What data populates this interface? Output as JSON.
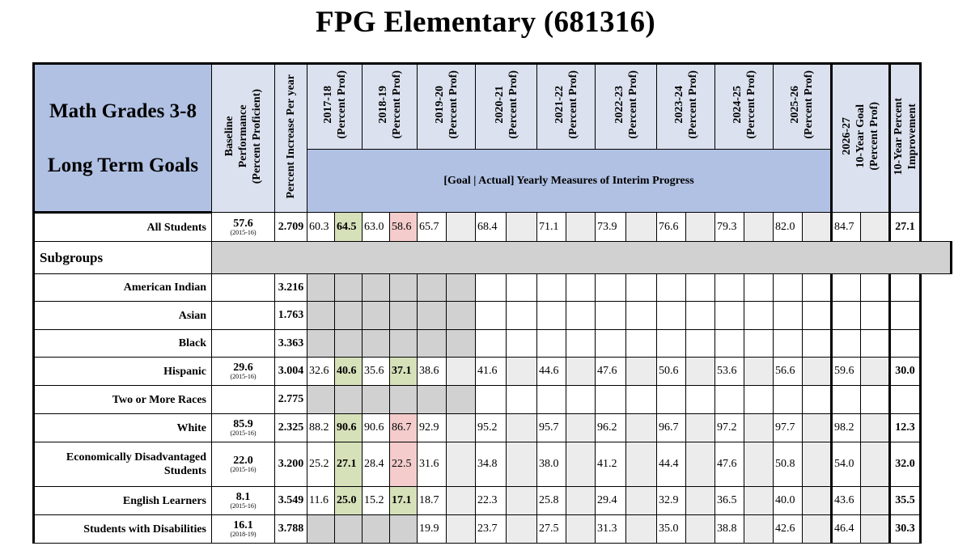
{
  "title": "FPG Elementary (681316)",
  "header": {
    "subject": "Math Grades 3-8",
    "long_term_goals": "Long Term Goals",
    "baseline": "Baseline\nPerformance\n(Percent Proficient)",
    "increase": "Percent Increase Per year",
    "years": [
      "2017-18\n(Percent Prof)",
      "2018-19\n(Percent Prof)",
      "2019-20\n(Percent Prof)",
      "2020-21\n(Percent Prof)",
      "2021-22\n(Percent Prof)",
      "2022-23\n(Percent Prof)",
      "2023-24\n(Percent Prof)",
      "2024-25\n(Percent Prof)",
      "2025-26\n(Percent Prof)"
    ],
    "ten_year_goal": "2026-27\n10-Year Goal\n(Percent Prof)",
    "improvement": "10-Year Percent\nImprovement",
    "band": "[Goal | Actual]   Yearly Measures of Interim Progress"
  },
  "all_students": {
    "label": "All Students",
    "baseline": "57.6",
    "year": "(2015-16)",
    "increase": "2.709",
    "values": [
      "60.3",
      "64.5",
      "63.0",
      "58.6",
      "65.7",
      "",
      "68.4",
      "",
      "71.1",
      "",
      "73.9",
      "",
      "76.6",
      "",
      "79.3",
      "",
      "82.0",
      "",
      "84.7",
      ""
    ],
    "improvement": "27.1"
  },
  "subgroups_label": "Subgroups",
  "rows": [
    {
      "label": "American Indian",
      "baseline": "",
      "year": "",
      "increase": "3.216",
      "values": [
        "",
        "",
        "",
        "",
        "",
        "",
        "",
        "",
        "",
        "",
        "",
        "",
        "",
        "",
        "",
        "",
        "",
        "",
        "",
        ""
      ],
      "improvement": ""
    },
    {
      "label": "Asian",
      "baseline": "",
      "year": "",
      "increase": "1.763",
      "values": [
        "",
        "",
        "",
        "",
        "",
        "",
        "",
        "",
        "",
        "",
        "",
        "",
        "",
        "",
        "",
        "",
        "",
        "",
        "",
        ""
      ],
      "improvement": ""
    },
    {
      "label": "Black",
      "baseline": "",
      "year": "",
      "increase": "3.363",
      "values": [
        "",
        "",
        "",
        "",
        "",
        "",
        "",
        "",
        "",
        "",
        "",
        "",
        "",
        "",
        "",
        "",
        "",
        "",
        "",
        ""
      ],
      "improvement": ""
    },
    {
      "label": "Hispanic",
      "baseline": "29.6",
      "year": "(2015-16)",
      "increase": "3.004",
      "values": [
        "32.6",
        "40.6",
        "35.6",
        "37.1",
        "38.6",
        "",
        "41.6",
        "",
        "44.6",
        "",
        "47.6",
        "",
        "50.6",
        "",
        "53.6",
        "",
        "56.6",
        "",
        "59.6",
        ""
      ],
      "improvement": "30.0"
    },
    {
      "label": "Two or More Races",
      "baseline": "",
      "year": "",
      "increase": "2.775",
      "values": [
        "",
        "",
        "",
        "",
        "",
        "",
        "",
        "",
        "",
        "",
        "",
        "",
        "",
        "",
        "",
        "",
        "",
        "",
        "",
        ""
      ],
      "improvement": ""
    },
    {
      "label": "White",
      "baseline": "85.9",
      "year": "(2015-16)",
      "increase": "2.325",
      "values": [
        "88.2",
        "90.6",
        "90.6",
        "86.7",
        "92.9",
        "",
        "95.2",
        "",
        "95.7",
        "",
        "96.2",
        "",
        "96.7",
        "",
        "97.2",
        "",
        "97.7",
        "",
        "98.2",
        ""
      ],
      "improvement": "12.3"
    },
    {
      "label": "Economically Disadvantaged Students",
      "baseline": "22.0",
      "year": "(2015-16)",
      "increase": "3.200",
      "values": [
        "25.2",
        "27.1",
        "28.4",
        "22.5",
        "31.6",
        "",
        "34.8",
        "",
        "38.0",
        "",
        "41.2",
        "",
        "44.4",
        "",
        "47.6",
        "",
        "50.8",
        "",
        "54.0",
        ""
      ],
      "improvement": "32.0"
    },
    {
      "label": "English Learners",
      "baseline": "8.1",
      "year": "(2015-16)",
      "increase": "3.549",
      "values": [
        "11.6",
        "25.0",
        "15.2",
        "17.1",
        "18.7",
        "",
        "22.3",
        "",
        "25.8",
        "",
        "29.4",
        "",
        "32.9",
        "",
        "36.5",
        "",
        "40.0",
        "",
        "43.6",
        ""
      ],
      "improvement": "35.5"
    },
    {
      "label": "Students with Disabilities",
      "baseline": "16.1",
      "year": "(2018-19)",
      "increase": "3.788",
      "values": [
        "",
        "",
        "",
        "",
        "19.9",
        "",
        "23.7",
        "",
        "27.5",
        "",
        "31.3",
        "",
        "35.0",
        "",
        "38.8",
        "",
        "42.6",
        "",
        "46.4",
        ""
      ],
      "improvement": "30.3"
    }
  ]
}
